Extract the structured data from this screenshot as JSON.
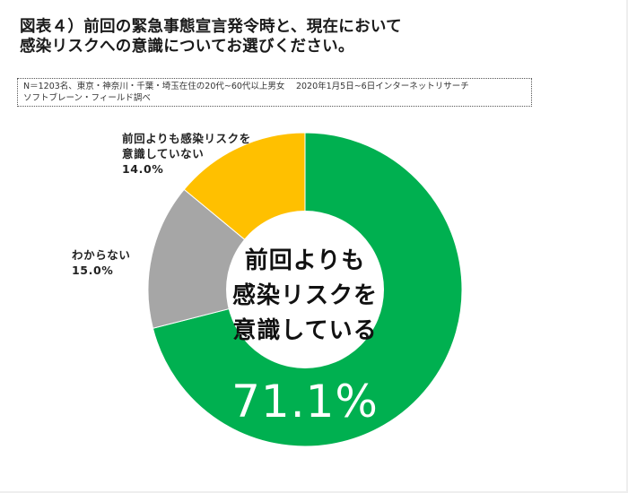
{
  "title": {
    "line1": "図表４）前回の緊急事態宣言発令時と、現在において",
    "line2": "感染リスクへの意識についてお選びください。"
  },
  "note": {
    "line1": "N＝1203名、東京・神奈川・千葉・埼玉在住の20代~60代以上男女　 2020年1月5日~6日インターネットリサーチ",
    "line2": "ソフトブレーン・フィールド調べ"
  },
  "labels": {
    "not_aware": {
      "line1": "前回よりも感染リスクを",
      "line2": "意識していない",
      "value": "14.0%"
    },
    "unknown": {
      "line1": "わからない",
      "value": "15.0%"
    },
    "aware": {
      "line1": "前回よりも",
      "line2": "感染リスクを",
      "line3": "意識している",
      "value": "71.1%"
    }
  },
  "colors": {
    "aware": "#00B050",
    "unknown": "#A6A6A6",
    "not_aware": "#FFC000"
  },
  "chart_data": {
    "type": "pie",
    "variant": "donut",
    "title": "図表４）前回の緊急事態宣言発令時と、現在において感染リスクへの意識についてお選びください。",
    "categories": [
      "前回よりも感染リスクを意識している",
      "わからない",
      "前回よりも感染リスクを意識していない"
    ],
    "values": [
      71.1,
      15.0,
      14.0
    ],
    "unit": "%",
    "colors": [
      "#00B050",
      "#A6A6A6",
      "#FFC000"
    ],
    "start_angle": "12 o'clock, clockwise",
    "legend": "none (direct labels)"
  }
}
